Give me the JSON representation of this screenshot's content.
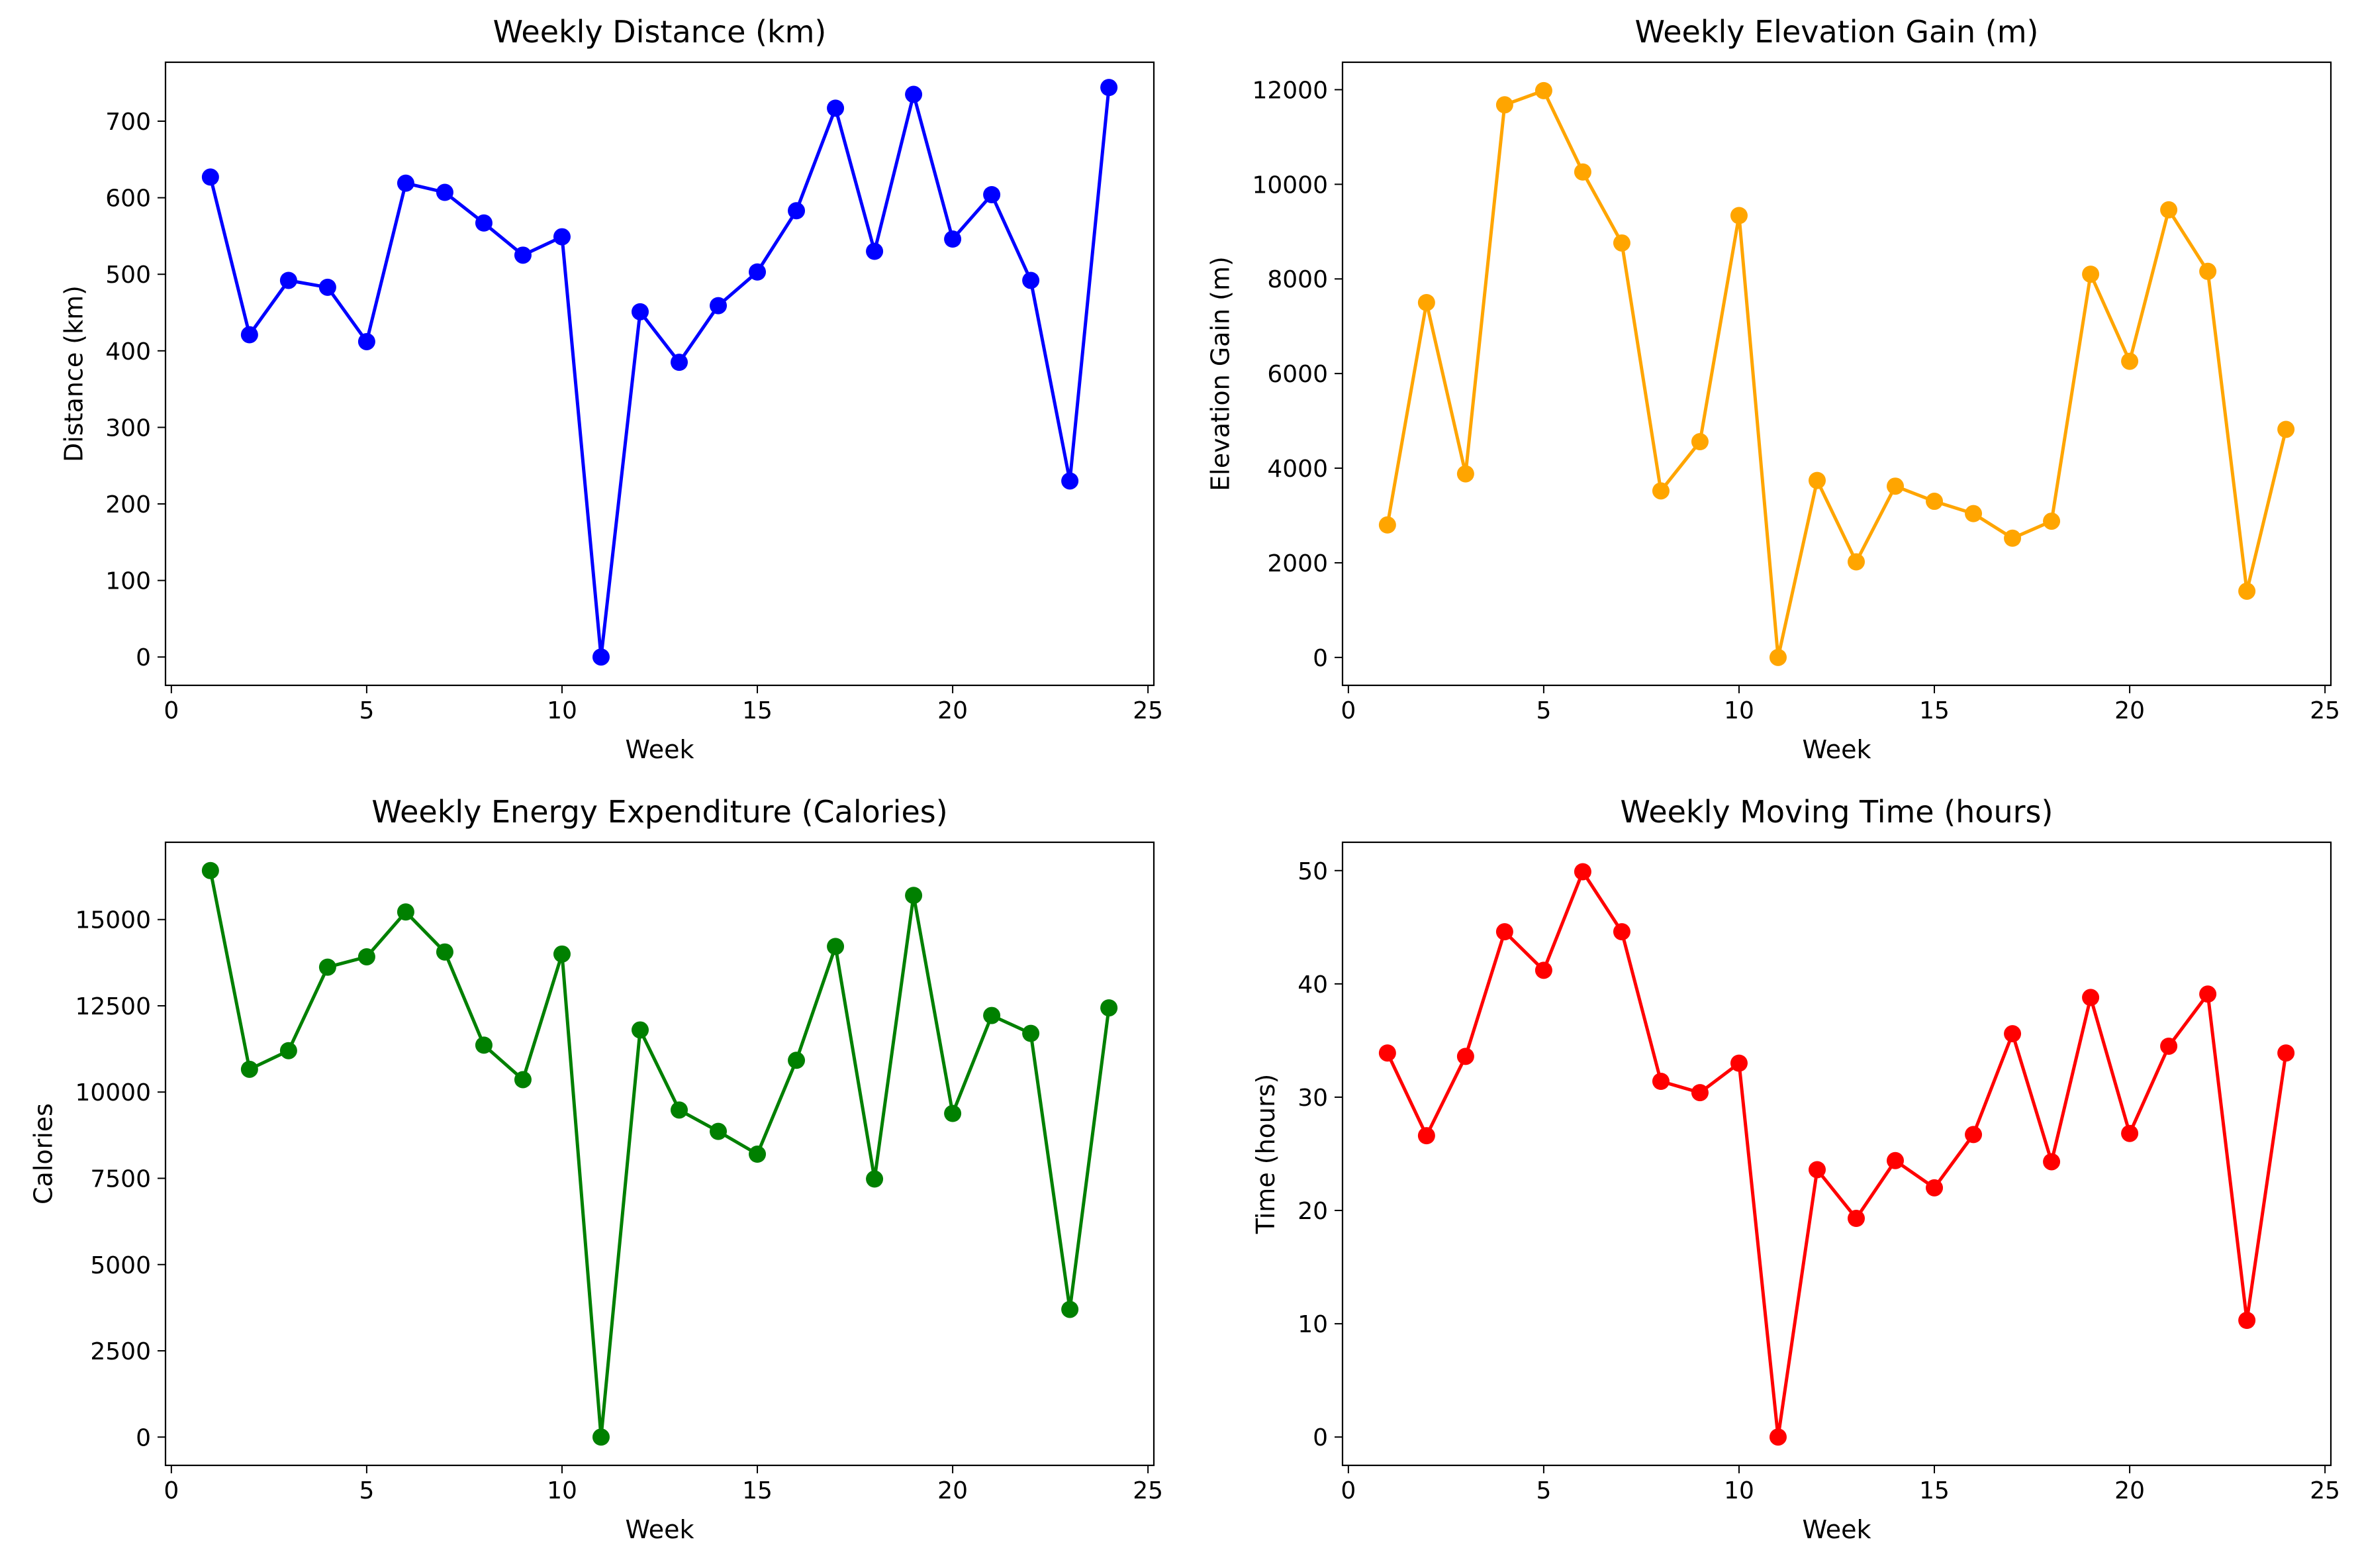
{
  "figure": {
    "background": "#ffffff"
  },
  "chart_data": [
    {
      "type": "line",
      "title": "Weekly Distance (km)",
      "xlabel": "Week",
      "ylabel": "Distance (km)",
      "xlim": [
        -0.15,
        25.15
      ],
      "ylim": [
        -37,
        777
      ],
      "xticks": [
        0,
        5,
        10,
        15,
        20,
        25
      ],
      "yticks": [
        0,
        100,
        200,
        300,
        400,
        500,
        600,
        700
      ],
      "grid": false,
      "color": "#0000ff",
      "x": [
        1,
        2,
        3,
        4,
        5,
        6,
        7,
        8,
        9,
        10,
        11,
        12,
        13,
        14,
        15,
        16,
        17,
        18,
        19,
        20,
        21,
        22,
        23,
        24
      ],
      "values": [
        627,
        421,
        492,
        483,
        412,
        619,
        607,
        567,
        525,
        549,
        0,
        451,
        385,
        459,
        503,
        583,
        717,
        530,
        735,
        546,
        604,
        492,
        230,
        744
      ]
    },
    {
      "type": "line",
      "title": "Weekly Elevation Gain (m)",
      "xlabel": "Week",
      "ylabel": "Elevation Gain (m)",
      "xlim": [
        -0.15,
        25.15
      ],
      "ylim": [
        -590,
        12580
      ],
      "xticks": [
        0,
        5,
        10,
        15,
        20,
        25
      ],
      "yticks": [
        0,
        2000,
        4000,
        6000,
        8000,
        10000,
        12000
      ],
      "grid": false,
      "color": "#ffa500",
      "x": [
        1,
        2,
        3,
        4,
        5,
        6,
        7,
        8,
        9,
        10,
        11,
        12,
        13,
        14,
        15,
        16,
        17,
        18,
        19,
        20,
        21,
        22,
        23,
        24
      ],
      "values": [
        2800,
        7500,
        3880,
        11680,
        11980,
        10260,
        8760,
        3520,
        4560,
        9340,
        0,
        3740,
        2020,
        3620,
        3300,
        3040,
        2520,
        2880,
        8100,
        6260,
        9460,
        8160,
        1400,
        4820
      ]
    },
    {
      "type": "line",
      "title": "Weekly Energy Expenditure (Calories)",
      "xlabel": "Week",
      "ylabel": "Calories",
      "xlim": [
        -0.15,
        25.15
      ],
      "ylim": [
        -820,
        17240
      ],
      "xticks": [
        0,
        5,
        10,
        15,
        20,
        25
      ],
      "yticks": [
        0,
        2500,
        5000,
        7500,
        10000,
        12500,
        15000
      ],
      "grid": false,
      "color": "#008000",
      "x": [
        1,
        2,
        3,
        4,
        5,
        6,
        7,
        8,
        9,
        10,
        11,
        12,
        13,
        14,
        15,
        16,
        17,
        18,
        19,
        20,
        21,
        22,
        23,
        24
      ],
      "values": [
        16420,
        10660,
        11200,
        13620,
        13920,
        15220,
        14060,
        11360,
        10360,
        14000,
        0,
        11800,
        9480,
        8860,
        8200,
        10920,
        14220,
        7480,
        15700,
        9380,
        12220,
        11700,
        3700,
        12440
      ]
    },
    {
      "type": "line",
      "title": "Weekly Moving Time (hours)",
      "xlabel": "Week",
      "ylabel": "Time (hours)",
      "xlim": [
        -0.15,
        25.15
      ],
      "ylim": [
        -2.5,
        52.5
      ],
      "xticks": [
        0,
        5,
        10,
        15,
        20,
        25
      ],
      "yticks": [
        0,
        10,
        20,
        30,
        40,
        50
      ],
      "grid": false,
      "color": "#ff0000",
      "x": [
        1,
        2,
        3,
        4,
        5,
        6,
        7,
        8,
        9,
        10,
        11,
        12,
        13,
        14,
        15,
        16,
        17,
        18,
        19,
        20,
        21,
        22,
        23,
        24
      ],
      "values": [
        33.9,
        26.6,
        33.6,
        44.6,
        41.2,
        49.9,
        44.6,
        31.4,
        30.4,
        33.0,
        0,
        23.6,
        19.3,
        24.4,
        22.0,
        26.7,
        35.6,
        24.3,
        38.8,
        26.8,
        34.5,
        39.1,
        10.3,
        33.9
      ]
    }
  ]
}
